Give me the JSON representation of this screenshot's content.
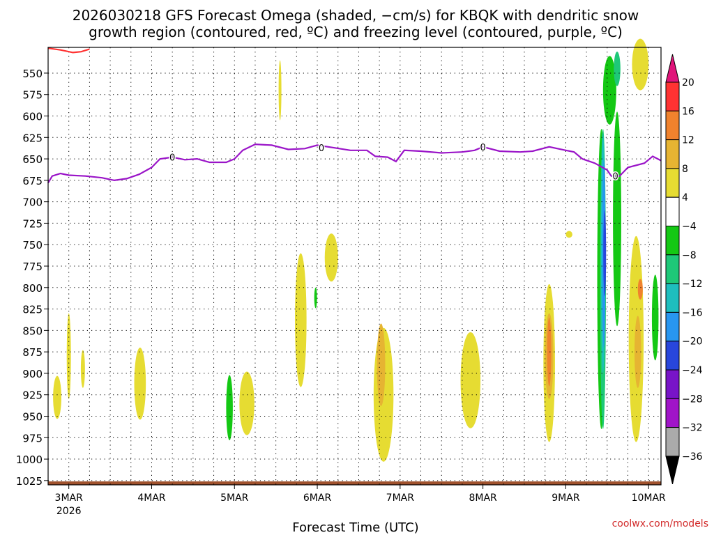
{
  "chart_data": {
    "type": "heatmap",
    "title_line1": "2026030218 GFS Forecast Omega (shaded, −cm/s) for KBQK with dendritic snow",
    "title_line2": "growth region (contoured, red, ºC) and freezing level (contoured, purple, ºC)",
    "xlabel": "Forecast Time (UTC)",
    "ylabel": "",
    "credit": "coolwx.com/models",
    "grid": true,
    "x_range_days": [
      -0.25,
      7.15
    ],
    "y_range_hPa": [
      520,
      1030
    ],
    "x_ticks": [
      {
        "day": 0,
        "label": "3MAR",
        "sub": "2026"
      },
      {
        "day": 1,
        "label": "4MAR",
        "sub": ""
      },
      {
        "day": 2,
        "label": "5MAR",
        "sub": ""
      },
      {
        "day": 3,
        "label": "6MAR",
        "sub": ""
      },
      {
        "day": 4,
        "label": "7MAR",
        "sub": ""
      },
      {
        "day": 5,
        "label": "8MAR",
        "sub": ""
      },
      {
        "day": 6,
        "label": "9MAR",
        "sub": ""
      },
      {
        "day": 7,
        "label": "10MAR",
        "sub": ""
      }
    ],
    "y_ticks": [
      550,
      575,
      600,
      625,
      650,
      675,
      700,
      725,
      750,
      775,
      800,
      825,
      850,
      875,
      900,
      925,
      950,
      975,
      1000,
      1025
    ],
    "colorbar": {
      "labels": [
        "20",
        "16",
        "12",
        "8",
        "4",
        "−4",
        "−8",
        "−12",
        "−16",
        "−20",
        "−24",
        "−28",
        "−32",
        "−36"
      ],
      "colors": [
        "#e0147a",
        "#ff3232",
        "#f0822d",
        "#e6b432",
        "#e6dc32",
        "#ffffff",
        "#14c814",
        "#1ec878",
        "#1ebebe",
        "#2896f0",
        "#2846dc",
        "#7814c8",
        "#a014c8",
        "#aaaaaa",
        "#000000"
      ]
    },
    "freezing_level": {
      "label": "0",
      "color": "#9a14c8",
      "points": [
        [
          -0.25,
          678
        ],
        [
          -0.2,
          670
        ],
        [
          -0.1,
          667
        ],
        [
          0,
          669
        ],
        [
          0.2,
          670
        ],
        [
          0.4,
          672
        ],
        [
          0.55,
          675
        ],
        [
          0.7,
          673
        ],
        [
          0.85,
          668
        ],
        [
          1.0,
          660
        ],
        [
          1.1,
          650
        ],
        [
          1.25,
          648
        ],
        [
          1.4,
          651
        ],
        [
          1.55,
          650
        ],
        [
          1.7,
          654
        ],
        [
          1.9,
          654
        ],
        [
          2.0,
          650
        ],
        [
          2.1,
          640
        ],
        [
          2.25,
          633
        ],
        [
          2.45,
          634
        ],
        [
          2.65,
          639
        ],
        [
          2.85,
          638
        ],
        [
          3.0,
          634
        ],
        [
          3.2,
          637
        ],
        [
          3.4,
          640
        ],
        [
          3.6,
          640
        ],
        [
          3.7,
          647
        ],
        [
          3.85,
          648
        ],
        [
          3.95,
          653
        ],
        [
          4.05,
          640
        ],
        [
          4.25,
          641
        ],
        [
          4.5,
          643
        ],
        [
          4.75,
          642
        ],
        [
          4.9,
          640
        ],
        [
          5.0,
          636
        ],
        [
          5.2,
          641
        ],
        [
          5.45,
          642
        ],
        [
          5.6,
          641
        ],
        [
          5.8,
          636
        ],
        [
          6.0,
          640
        ],
        [
          6.1,
          642
        ],
        [
          6.2,
          650
        ],
        [
          6.35,
          655
        ],
        [
          6.5,
          663
        ],
        [
          6.55,
          670
        ],
        [
          6.65,
          670
        ],
        [
          6.75,
          660
        ],
        [
          6.95,
          655
        ],
        [
          7.05,
          647
        ],
        [
          7.15,
          652
        ]
      ]
    },
    "dgz_contour": {
      "color": "#ff3232",
      "points": [
        [
          -0.25,
          521
        ],
        [
          -0.1,
          523
        ],
        [
          0.05,
          526
        ],
        [
          0.15,
          525
        ],
        [
          0.25,
          522
        ]
      ]
    },
    "omega_regions": [
      {
        "level": "4",
        "color": "#e6dc32",
        "center": [
          -0.14,
          928
        ],
        "half": [
          0.05,
          25
        ]
      },
      {
        "level": "4",
        "color": "#e6dc32",
        "center": [
          0.0,
          880
        ],
        "half": [
          0.025,
          50
        ]
      },
      {
        "level": "4",
        "color": "#e6dc32",
        "center": [
          0.17,
          895
        ],
        "half": [
          0.025,
          22
        ]
      },
      {
        "level": "4",
        "color": "#e6dc32",
        "center": [
          0.86,
          912
        ],
        "half": [
          0.07,
          42
        ]
      },
      {
        "level": "4",
        "color": "#e6dc32",
        "center": [
          2.15,
          935
        ],
        "half": [
          0.09,
          37
        ]
      },
      {
        "level": "4",
        "color": "#e6dc32",
        "center": [
          2.8,
          838
        ],
        "half": [
          0.07,
          78
        ]
      },
      {
        "level": "4",
        "color": "#e6dc32",
        "center": [
          2.55,
          570
        ],
        "half": [
          0.015,
          35
        ]
      },
      {
        "level": "4",
        "color": "#e6dc32",
        "center": [
          3.17,
          765
        ],
        "half": [
          0.08,
          28
        ]
      },
      {
        "level": "4",
        "color": "#e6dc32",
        "center": [
          3.8,
          925
        ],
        "half": [
          0.12,
          78
        ]
      },
      {
        "level": "4",
        "color": "#e6dc32",
        "center": [
          4.85,
          908
        ],
        "half": [
          0.12,
          56
        ]
      },
      {
        "level": "4",
        "color": "#e6dc32",
        "center": [
          5.8,
          888
        ],
        "half": [
          0.07,
          92
        ]
      },
      {
        "level": "4",
        "color": "#e6dc32",
        "center": [
          6.04,
          738
        ],
        "half": [
          0.04,
          4
        ]
      },
      {
        "level": "4",
        "color": "#e6dc32",
        "center": [
          6.85,
          860
        ],
        "half": [
          0.09,
          120
        ]
      },
      {
        "level": "4",
        "color": "#e6dc32",
        "center": [
          6.9,
          540
        ],
        "half": [
          0.1,
          30
        ]
      },
      {
        "level": "8",
        "color": "#e6b432",
        "center": [
          3.77,
          890
        ],
        "half": [
          0.05,
          48
        ]
      },
      {
        "level": "8",
        "color": "#e6b432",
        "center": [
          5.8,
          880
        ],
        "half": [
          0.05,
          50
        ]
      },
      {
        "level": "8",
        "color": "#e6b432",
        "center": [
          6.87,
          875
        ],
        "half": [
          0.04,
          42
        ]
      },
      {
        "level": "12",
        "color": "#f0822d",
        "center": [
          5.8,
          875
        ],
        "half": [
          0.025,
          40
        ]
      },
      {
        "level": "12",
        "color": "#f0822d",
        "center": [
          6.9,
          802
        ],
        "half": [
          0.03,
          12
        ]
      },
      {
        "level": "-4",
        "color": "#14c814",
        "center": [
          1.94,
          940
        ],
        "half": [
          0.04,
          38
        ]
      },
      {
        "level": "-4",
        "color": "#14c814",
        "center": [
          2.98,
          812
        ],
        "half": [
          0.01,
          12
        ]
      },
      {
        "level": "-4",
        "color": "#14c814",
        "center": [
          6.43,
          790
        ],
        "half": [
          0.05,
          175
        ]
      },
      {
        "level": "-4",
        "color": "#14c814",
        "center": [
          6.62,
          720
        ],
        "half": [
          0.05,
          125
        ]
      },
      {
        "level": "-4",
        "color": "#14c814",
        "center": [
          6.53,
          570
        ],
        "half": [
          0.08,
          40
        ]
      },
      {
        "level": "-4",
        "color": "#14c814",
        "center": [
          7.08,
          835
        ],
        "half": [
          0.04,
          50
        ]
      },
      {
        "level": "-8",
        "color": "#1ec878",
        "center": [
          6.45,
          790
        ],
        "half": [
          0.035,
          175
        ]
      },
      {
        "level": "-8",
        "color": "#1ec878",
        "center": [
          6.62,
          545
        ],
        "half": [
          0.04,
          20
        ]
      },
      {
        "level": "-12",
        "color": "#1ebebe",
        "center": [
          6.45,
          760
        ],
        "half": [
          0.025,
          140
        ]
      },
      {
        "level": "-16",
        "color": "#2896f0",
        "center": [
          6.46,
          760
        ],
        "half": [
          0.02,
          110
        ]
      },
      {
        "level": "-20",
        "color": "#2846dc",
        "center": [
          6.47,
          760
        ],
        "half": [
          0.012,
          50
        ]
      }
    ]
  }
}
